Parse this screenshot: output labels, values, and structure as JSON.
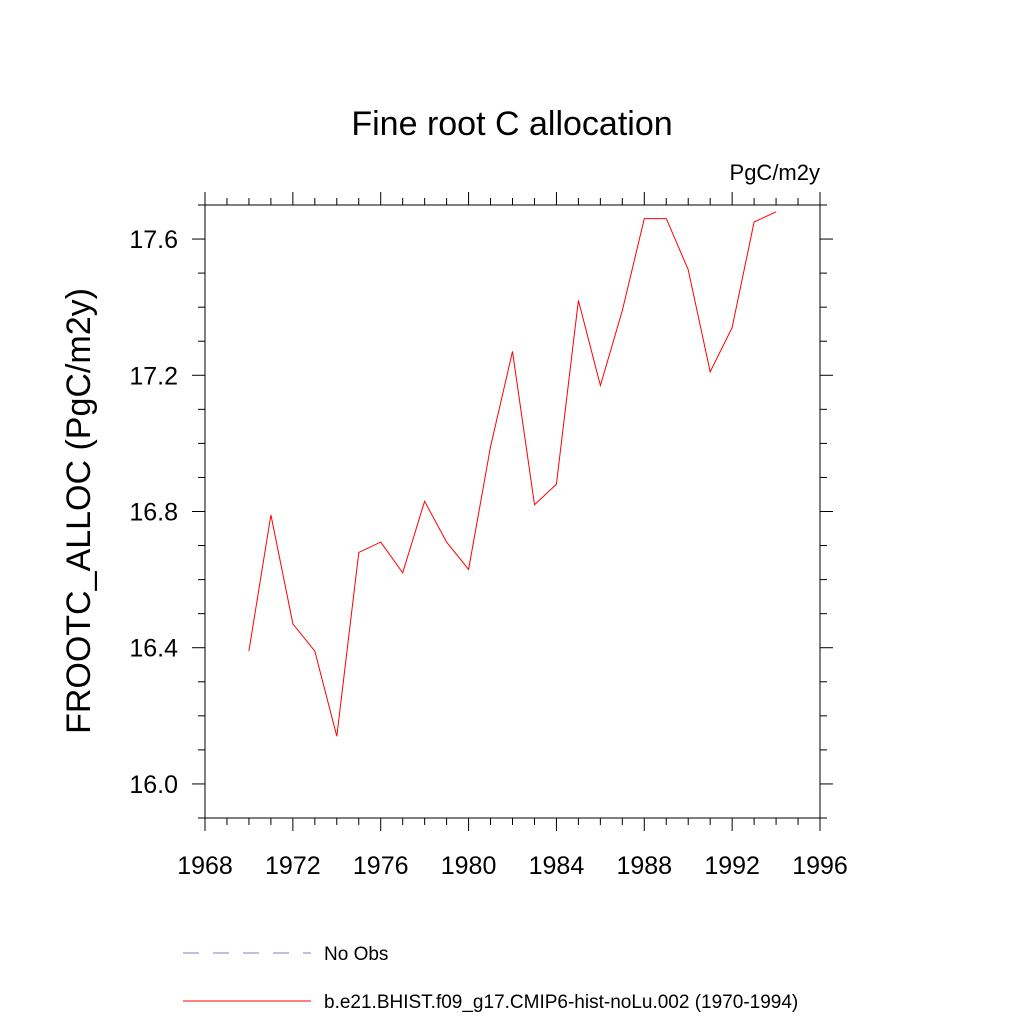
{
  "chart_data": {
    "type": "line",
    "title": "Fine root C allocation",
    "units": "PgC/m2y",
    "xlabel": "",
    "ylabel": "FROOTC_ALLOC  (PgC/m2y)",
    "xlim": [
      1968,
      1996
    ],
    "ylim": [
      15.9,
      17.7
    ],
    "xticks": [
      1968,
      1972,
      1976,
      1980,
      1984,
      1988,
      1992,
      1996
    ],
    "yticks": [
      16.0,
      16.4,
      16.8,
      17.2,
      17.6
    ],
    "grid": false,
    "legend_position": "bottom",
    "series": [
      {
        "name": "b.e21.BHIST.f09_g17.CMIP6-hist-noLu.002 (1970-1994)",
        "color": "#ff0000",
        "style": "solid",
        "x": [
          1970,
          1971,
          1972,
          1973,
          1974,
          1975,
          1976,
          1977,
          1978,
          1979,
          1980,
          1981,
          1982,
          1983,
          1984,
          1985,
          1986,
          1987,
          1988,
          1989,
          1990,
          1991,
          1992,
          1993,
          1994
        ],
        "values": [
          16.39,
          16.79,
          16.47,
          16.39,
          16.14,
          16.68,
          16.71,
          16.62,
          16.83,
          16.71,
          16.63,
          16.99,
          17.27,
          16.82,
          16.88,
          17.42,
          17.17,
          17.39,
          17.66,
          17.66,
          17.51,
          17.21,
          17.34,
          17.65,
          17.68
        ]
      }
    ],
    "legend": [
      {
        "label": "No Obs",
        "color": "#8080c0",
        "style": "dashed"
      },
      {
        "label": "b.e21.BHIST.f09_g17.CMIP6-hist-noLu.002 (1970-1994)",
        "color": "#ff0000",
        "style": "solid"
      }
    ]
  }
}
